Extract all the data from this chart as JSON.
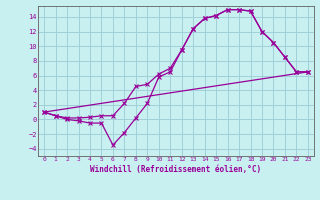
{
  "xlabel": "Windchill (Refroidissement éolien,°C)",
  "bg_color": "#c8f0f0",
  "grid_color": "#a0d0d8",
  "line_color": "#990099",
  "xlim": [
    -0.5,
    23.5
  ],
  "ylim": [
    -5,
    15.5
  ],
  "xticks": [
    0,
    1,
    2,
    3,
    4,
    5,
    6,
    7,
    8,
    9,
    10,
    11,
    12,
    13,
    14,
    15,
    16,
    17,
    18,
    19,
    20,
    21,
    22,
    23
  ],
  "yticks": [
    -4,
    -2,
    0,
    2,
    4,
    6,
    8,
    10,
    12,
    14
  ],
  "line1_x": [
    0,
    1,
    2,
    3,
    4,
    5,
    6,
    7,
    8,
    9,
    10,
    11,
    12,
    13,
    14,
    15,
    16,
    17,
    18,
    19,
    20,
    21,
    22,
    23
  ],
  "line1_y": [
    1.0,
    0.5,
    0.0,
    -0.2,
    -0.5,
    -0.5,
    -3.5,
    -1.8,
    0.2,
    2.2,
    5.8,
    6.5,
    9.5,
    12.4,
    13.8,
    14.2,
    15.0,
    15.0,
    14.8,
    12.0,
    10.5,
    8.5,
    6.5,
    6.5
  ],
  "line2_x": [
    0,
    1,
    2,
    3,
    4,
    5,
    6,
    7,
    8,
    9,
    10,
    11,
    12,
    13,
    14,
    15,
    16,
    17,
    18,
    19,
    20,
    21,
    22,
    23
  ],
  "line2_y": [
    1.0,
    0.5,
    0.2,
    0.2,
    0.3,
    0.5,
    0.5,
    2.2,
    4.5,
    4.8,
    6.2,
    7.0,
    9.5,
    12.4,
    13.8,
    14.2,
    15.0,
    15.0,
    14.8,
    12.0,
    10.5,
    8.5,
    6.5,
    6.5
  ],
  "line3_x": [
    0,
    23
  ],
  "line3_y": [
    1.0,
    6.5
  ]
}
